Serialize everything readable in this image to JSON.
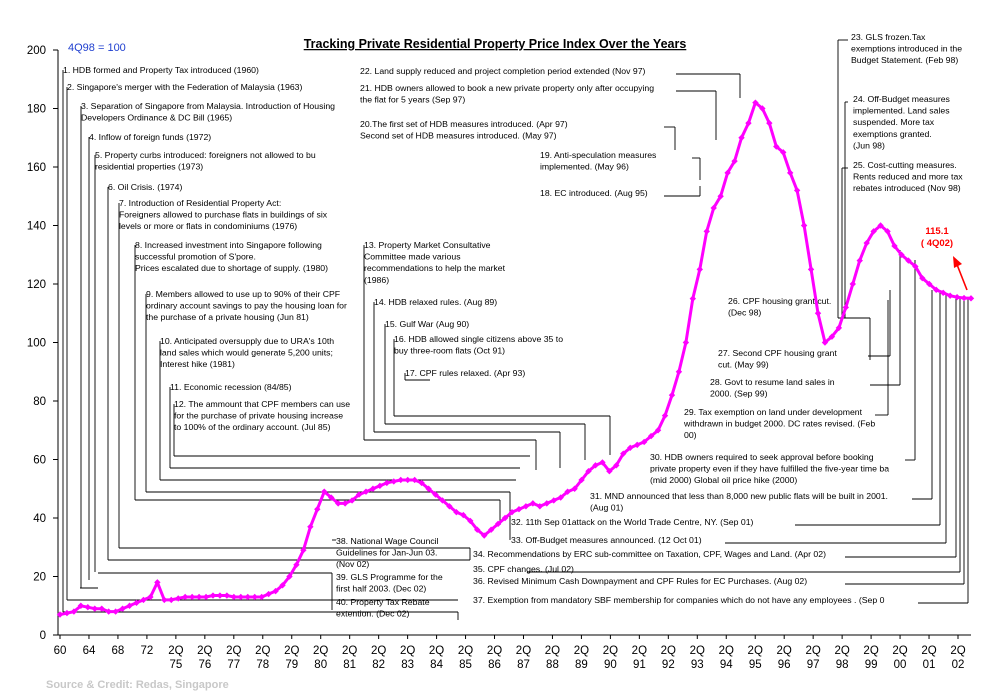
{
  "chart_data": {
    "type": "line",
    "title": "Tracking Private Residential Property Price Index Over the Years",
    "base_note": "4Q98 = 100",
    "source": "Source & Credit: Redas, Singapore",
    "xlabel": "",
    "ylabel": "",
    "ylim": [
      0,
      200
    ],
    "yticks": [
      0,
      20,
      40,
      60,
      80,
      100,
      120,
      140,
      160,
      180,
      200
    ],
    "series_color": "#ff00ff",
    "x_tick_labels": [
      {
        "top": "60",
        "bottom": ""
      },
      {
        "top": "64",
        "bottom": ""
      },
      {
        "top": "68",
        "bottom": ""
      },
      {
        "top": "72",
        "bottom": ""
      },
      {
        "top": "2Q",
        "bottom": "75"
      },
      {
        "top": "2Q",
        "bottom": "76"
      },
      {
        "top": "2Q",
        "bottom": "77"
      },
      {
        "top": "2Q",
        "bottom": "78"
      },
      {
        "top": "2Q",
        "bottom": "79"
      },
      {
        "top": "2Q",
        "bottom": "80"
      },
      {
        "top": "2Q",
        "bottom": "81"
      },
      {
        "top": "2Q",
        "bottom": "82"
      },
      {
        "top": "2Q",
        "bottom": "83"
      },
      {
        "top": "2Q",
        "bottom": "84"
      },
      {
        "top": "2Q",
        "bottom": "85"
      },
      {
        "top": "2Q",
        "bottom": "86"
      },
      {
        "top": "2Q",
        "bottom": "87"
      },
      {
        "top": "2Q",
        "bottom": "88"
      },
      {
        "top": "2Q",
        "bottom": "89"
      },
      {
        "top": "2Q",
        "bottom": "90"
      },
      {
        "top": "2Q",
        "bottom": "91"
      },
      {
        "top": "2Q",
        "bottom": "92"
      },
      {
        "top": "2Q",
        "bottom": "93"
      },
      {
        "top": "2Q",
        "bottom": "94"
      },
      {
        "top": "2Q",
        "bottom": "95"
      },
      {
        "top": "2Q",
        "bottom": "96"
      },
      {
        "top": "2Q",
        "bottom": "97"
      },
      {
        "top": "2Q",
        "bottom": "98"
      },
      {
        "top": "2Q",
        "bottom": "99"
      },
      {
        "top": "2Q",
        "bottom": "00"
      },
      {
        "top": "2Q",
        "bottom": "01"
      },
      {
        "top": "2Q",
        "bottom": "02"
      }
    ],
    "series": [
      {
        "values": [
          7,
          7.5,
          8,
          10,
          9.5,
          9,
          9,
          8,
          8,
          9,
          10,
          11,
          12,
          13,
          18,
          12,
          12,
          12.5,
          13,
          13,
          13,
          13,
          13.5,
          13.5,
          13.5,
          13,
          13,
          13,
          13,
          13,
          14,
          15,
          17,
          20,
          24,
          29,
          37,
          43,
          49,
          47,
          45,
          45,
          46,
          48,
          49,
          50,
          51,
          52,
          52.5,
          53,
          53,
          53,
          52,
          50,
          48,
          46,
          44,
          42,
          41,
          39,
          36,
          34,
          36,
          38,
          40,
          42,
          43,
          44,
          45,
          44,
          45,
          46,
          47,
          49,
          50,
          53,
          56,
          58,
          59,
          56,
          58,
          62,
          64,
          65,
          66,
          68,
          70,
          75,
          82,
          90,
          100,
          115,
          125,
          138,
          146,
          150,
          158,
          162,
          170,
          175,
          182,
          180,
          175,
          167,
          165,
          158,
          152,
          140,
          125,
          110,
          100,
          102,
          105,
          112,
          120,
          128,
          134,
          138,
          140,
          138,
          133,
          130,
          128,
          126,
          122,
          120,
          118,
          117,
          116,
          115.5,
          115.2,
          115.1
        ]
      }
    ],
    "annotations": {
      "last_value": "115.1",
      "last_period": "( 4Q02)",
      "events": [
        {
          "id": "e1",
          "text": [
            "1. HDB formed  and  Property Tax introduced (1960)"
          ]
        },
        {
          "id": "e2",
          "text": [
            "2. Singapore's merger with the Federation of Malaysia (1963)"
          ]
        },
        {
          "id": "e3",
          "text": [
            "3. Separation of Singapore from Malaysia. Introduction of Housing",
            "Developers Ordinance & DC Bill (1965)"
          ]
        },
        {
          "id": "e4",
          "text": [
            "4. Inflow of foreign funds (1972)"
          ]
        },
        {
          "id": "e5",
          "text": [
            "5. Property curbs introduced: foreigners not allowed to bu",
            "residential properties (1973)"
          ]
        },
        {
          "id": "e6",
          "text": [
            "6. Oil Crisis. (1974)"
          ]
        },
        {
          "id": "e7",
          "text": [
            "7. Introduction of Residential Property Act:",
            "Foreigners allowed to purchase flats in buildings of six",
            "levels or more or flats in condominiums (1976)"
          ]
        },
        {
          "id": "e8",
          "text": [
            "8. Increased investment into Singapore following",
            "successful promotion of S'pore.",
            "Prices escalated due to shortage of supply. (1980)"
          ]
        },
        {
          "id": "e9",
          "text": [
            "9. Members allowed to use up to 90% of their CPF",
            "ordinary account savings to pay the housing loan for",
            "the purchase of a private housing (Jun 81)"
          ]
        },
        {
          "id": "e10",
          "text": [
            "10. Anticipated oversupply due to URA's 10th",
            "land sales which would generate 5,200 units;",
            "Interest hike (1981)"
          ]
        },
        {
          "id": "e11",
          "text": [
            "11. Economic recession (84/85)"
          ]
        },
        {
          "id": "e12",
          "text": [
            "12. The ammount that CPF members can use",
            "for the  purchase of private housing increase",
            "to 100% of the ordinary account. (Jul 85)"
          ]
        },
        {
          "id": "e13",
          "text": [
            "13. Property Market Consultative",
            "Committee made various",
            "recommendations to help the market",
            "(1986)"
          ]
        },
        {
          "id": "e14",
          "text": [
            "14. HDB relaxed rules. (Aug 89)"
          ]
        },
        {
          "id": "e15",
          "text": [
            "15. Gulf War (Aug 90)"
          ]
        },
        {
          "id": "e16",
          "text": [
            "16. HDB allowed single citizens above 35 to",
            "buy three-room flats (Oct 91)"
          ]
        },
        {
          "id": "e17",
          "text": [
            "17. CPF rules relaxed. (Apr 93)"
          ]
        },
        {
          "id": "e18",
          "text": [
            "18. EC introduced. (Aug 95)"
          ]
        },
        {
          "id": "e19",
          "text": [
            "19. Anti-speculation measures",
            "implemented. (May 96)"
          ]
        },
        {
          "id": "e20",
          "text": [
            "20.The first set of HDB measures introduced. (Apr 97)",
            "Second set of HDB measures introduced. (May 97)"
          ]
        },
        {
          "id": "e21",
          "text": [
            "21. HDB owners allowed to book a new private property only after occupying",
            "the flat for 5 years (Sep 97)"
          ]
        },
        {
          "id": "e22",
          "text": [
            "22. Land supply reduced and project completion period extended (Nov 97)"
          ]
        },
        {
          "id": "e23",
          "text": [
            "23. GLS frozen.Tax",
            "exemptions introduced in the",
            "Budget Statement. (Feb 98)"
          ]
        },
        {
          "id": "e24",
          "text": [
            "24. Off-Budget measures",
            "implemented. Land sales",
            "suspended. More tax",
            "exemptions granted.",
            "(Jun 98)"
          ]
        },
        {
          "id": "e25",
          "text": [
            "25. Cost-cutting measures.",
            "Rents reduced and more tax",
            "rebates introduced (Nov 98)"
          ]
        },
        {
          "id": "e26",
          "text": [
            "26. CPF housing grant cut.",
            "(Dec 98)"
          ]
        },
        {
          "id": "e27",
          "text": [
            "27. Second CPF housing grant",
            "cut. (May 99)"
          ]
        },
        {
          "id": "e28",
          "text": [
            "28. Govt  to resume land sales in",
            "2000. (Sep 99)"
          ]
        },
        {
          "id": "e29",
          "text": [
            "29. Tax exemption on land under development",
            "withdrawn in budget 2000. DC rates revised. (Feb",
            "00)"
          ]
        },
        {
          "id": "e30",
          "text": [
            "30. HDB owners required to seek approval before booking",
            "private property even if they have fulfilled the five-year time ba",
            "(mid 2000) Global oil price hike (2000)"
          ]
        },
        {
          "id": "e31",
          "text": [
            "31. MND announced that less than 8,000 new public flats will be built in 2001.",
            "(Aug 01)"
          ]
        },
        {
          "id": "e32",
          "text": [
            "32. 11th Sep 01attack on the World Trade Centre, NY. (Sep 01)"
          ]
        },
        {
          "id": "e33",
          "text": [
            "33. Off-Budget measures announced.  (12 Oct 01)"
          ]
        },
        {
          "id": "e34",
          "text": [
            "34. Recommendations by ERC sub-committee on Taxation, CPF, Wages and Land.    (Apr 02)"
          ]
        },
        {
          "id": "e35",
          "text": [
            "35. CPF changes. (Jul 02)"
          ]
        },
        {
          "id": "e36",
          "text": [
            "36. Revised Minimum Cash Downpayment and CPF Rules for EC Purchases. (Aug 02)"
          ]
        },
        {
          "id": "e37",
          "text": [
            "37. Exemption from mandatory SBF membership for companies which do not have any employees . (Sep 0"
          ]
        },
        {
          "id": "e38",
          "text": [
            "38. National Wage Council",
            "Guidelines for Jan-Jun 03.",
            "(Nov 02)"
          ]
        },
        {
          "id": "e39",
          "text": [
            "39. GLS Programme for the",
            "first half 2003. (Dec 02)"
          ]
        },
        {
          "id": "e40",
          "text": [
            "40. Property Tax Rebate",
            "extention. (Dec 02)"
          ]
        }
      ]
    }
  }
}
